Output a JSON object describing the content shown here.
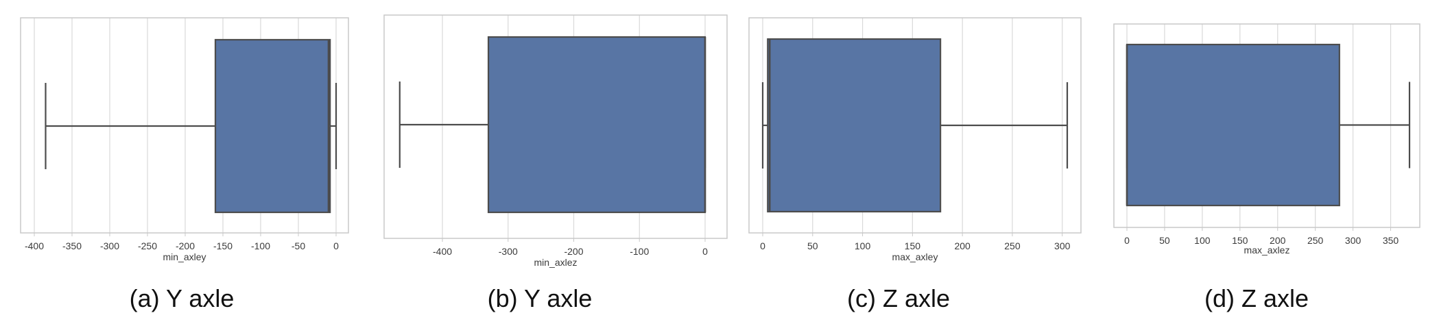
{
  "figure": {
    "colors": {
      "box_fill": "#5875a4",
      "line": "#4c4c4c",
      "grid": "#d9d9d9",
      "frame": "#c8c8c8",
      "text": "#3a3a3a"
    }
  },
  "chart_data": [
    {
      "type": "box",
      "caption": "(a) Y axle",
      "xlabel": "min_axley",
      "xlim": [
        -400,
        0
      ],
      "ticks": [
        -400,
        -350,
        -300,
        -250,
        -200,
        -150,
        -100,
        -50,
        0
      ],
      "whisker_low": -385,
      "q1": -160,
      "median": -10,
      "q3": -8,
      "whisker_high": 0,
      "grid": true,
      "orientation": "horizontal"
    },
    {
      "type": "box",
      "caption": "(b) Y axle",
      "xlabel": "min_axlez",
      "xlim": [
        -470,
        0
      ],
      "ticks": [
        -400,
        -300,
        -200,
        -100,
        0
      ],
      "whisker_low": -465,
      "q1": -330,
      "median": 0,
      "q3": 0,
      "whisker_high": 0,
      "grid": true,
      "orientation": "horizontal"
    },
    {
      "type": "box",
      "caption": "(c) Z axle",
      "xlabel": "max_axley",
      "xlim": [
        0,
        305
      ],
      "ticks": [
        0,
        50,
        100,
        150,
        200,
        250,
        300
      ],
      "whisker_low": 0,
      "q1": 5,
      "median": 7,
      "q3": 178,
      "whisker_high": 305,
      "grid": true,
      "orientation": "horizontal"
    },
    {
      "type": "box",
      "caption": "(d) Z axle",
      "xlabel": "max_axlez",
      "xlim": [
        0,
        375
      ],
      "ticks": [
        0,
        50,
        100,
        150,
        200,
        250,
        300,
        350
      ],
      "whisker_low": 0,
      "q1": 0,
      "median": 0,
      "q3": 282,
      "whisker_high": 375,
      "grid": true,
      "orientation": "horizontal"
    }
  ]
}
